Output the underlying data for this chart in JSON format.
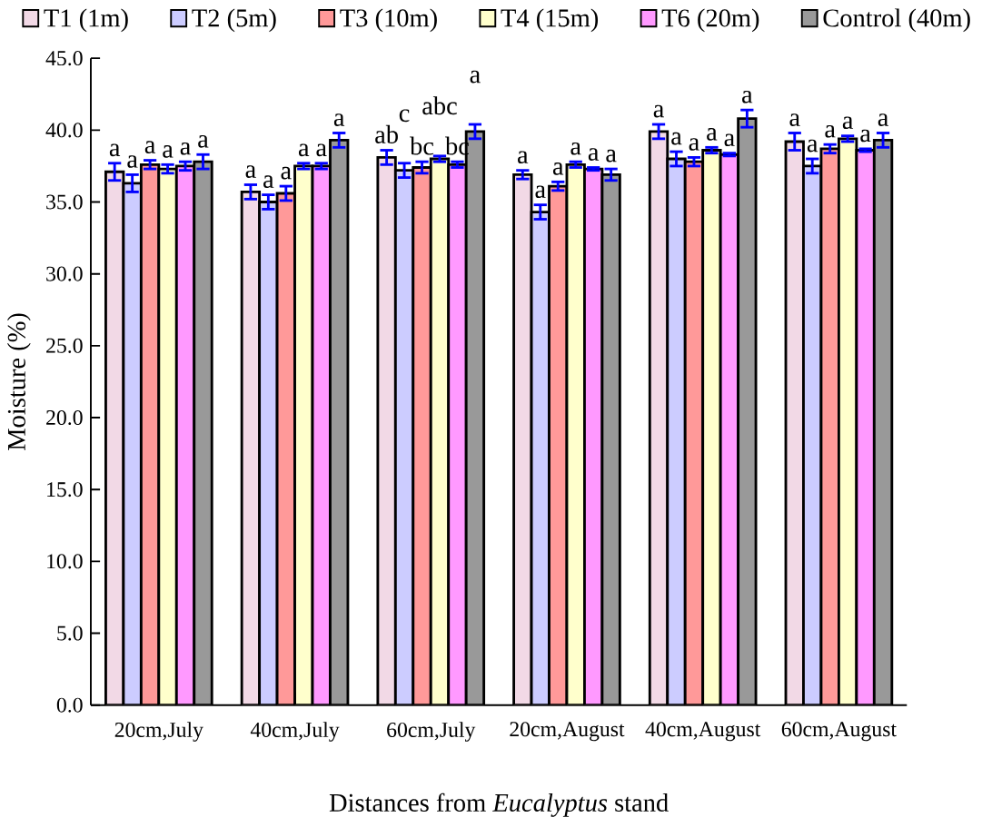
{
  "chart_data": {
    "type": "bar",
    "xlabel": "Distances from *Eucalyptus* stand",
    "ylabel": "Moisture (%)",
    "categories": [
      "20cm,July",
      "40cm,July",
      "60cm,July",
      "20cm,August",
      "40cm,August",
      "60cm,August"
    ],
    "ylim": [
      0,
      45
    ],
    "yticks": [
      {
        "value": 0,
        "label": "0.0"
      },
      {
        "value": 5,
        "label": "5.0"
      },
      {
        "value": 10,
        "label": "10.0"
      },
      {
        "value": 15,
        "label": "15.0"
      },
      {
        "value": 20,
        "label": "20.0"
      },
      {
        "value": 25,
        "label": "25.0"
      },
      {
        "value": 30,
        "label": "30.0"
      },
      {
        "value": 35,
        "label": "35.0"
      },
      {
        "value": 40,
        "label": "40.0"
      },
      {
        "value": 45,
        "label": "45.0"
      }
    ],
    "legend": "top",
    "grid": false,
    "series": [
      {
        "name": "T1 (1m)",
        "color": "#f2d9e6",
        "values": [
          37.1,
          35.7,
          38.1,
          36.9,
          39.9,
          39.2
        ],
        "errors": [
          0.6,
          0.5,
          0.5,
          0.3,
          0.5,
          0.6
        ],
        "value_labels": [
          "a",
          "a",
          "ab",
          "a",
          "a",
          "a"
        ]
      },
      {
        "name": "T2 (5m)",
        "color": "#ccccff",
        "values": [
          36.3,
          35.0,
          37.2,
          34.3,
          38.0,
          37.5
        ],
        "errors": [
          0.6,
          0.5,
          0.5,
          0.5,
          0.5,
          0.5
        ],
        "value_labels": [
          "a",
          "a",
          "c",
          "a",
          "a",
          "a"
        ]
      },
      {
        "name": "T3 (10m)",
        "color": "#ff9999",
        "values": [
          37.6,
          35.6,
          37.4,
          36.1,
          37.8,
          38.7
        ],
        "errors": [
          0.3,
          0.5,
          0.4,
          0.3,
          0.3,
          0.3
        ],
        "value_labels": [
          "a",
          "a",
          "bc",
          "a",
          "a",
          "a"
        ]
      },
      {
        "name": "T4 (15m)",
        "color": "#ffffcc",
        "values": [
          37.3,
          37.5,
          38.0,
          37.6,
          38.6,
          39.4
        ],
        "errors": [
          0.3,
          0.2,
          0.2,
          0.2,
          0.2,
          0.2
        ],
        "value_labels": [
          "a",
          "a",
          "abc",
          "a",
          "a",
          "a"
        ]
      },
      {
        "name": "T6 (20m)",
        "color": "#ff99ff",
        "values": [
          37.5,
          37.5,
          37.6,
          37.3,
          38.3,
          38.6
        ],
        "errors": [
          0.3,
          0.2,
          0.2,
          0.1,
          0.1,
          0.1
        ],
        "value_labels": [
          "a",
          "a",
          "bc",
          "a",
          "a",
          "a"
        ]
      },
      {
        "name": "Control (40m)",
        "color": "#999999",
        "values": [
          37.8,
          39.3,
          39.9,
          36.9,
          40.8,
          39.3
        ],
        "errors": [
          0.5,
          0.5,
          0.5,
          0.4,
          0.6,
          0.5
        ],
        "value_labels": [
          "a",
          "a",
          "a",
          "a",
          "a",
          "a"
        ]
      }
    ]
  }
}
